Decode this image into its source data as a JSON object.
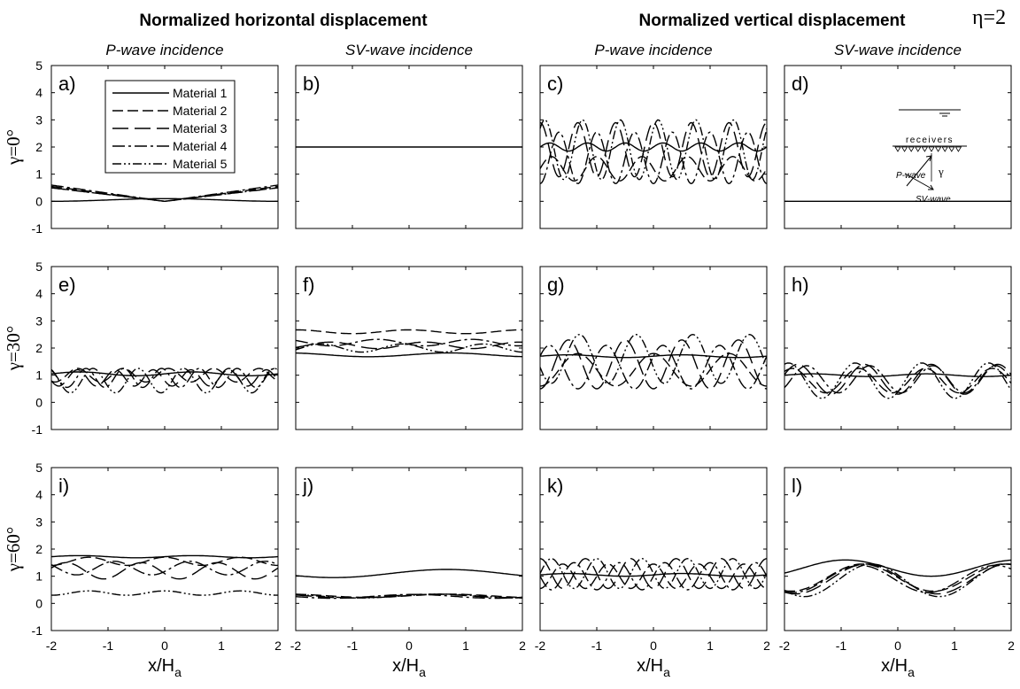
{
  "figure": {
    "header_horizontal": "Normalized horizontal displacement",
    "header_vertical": "Normalized vertical displacement",
    "eta_label": "η=2",
    "column_titles": [
      "P-wave incidence",
      "SV-wave incidence",
      "P-wave incidence",
      "SV-wave incidence"
    ],
    "row_labels": [
      "γ=0°",
      "γ=30°",
      "γ=60°"
    ],
    "xlabel_main": "x/H",
    "xlabel_sub": "a",
    "legend": [
      "Material 1",
      "Material 2",
      "Material 3",
      "Material 4",
      "Material 5"
    ],
    "inset": {
      "receivers": "receivers",
      "p_wave": "P-wave",
      "sv_wave": "SV-wave",
      "gamma": "γ"
    },
    "xlim": [
      -2,
      2
    ],
    "ylim": [
      -1,
      5
    ],
    "x_ticks": [
      "-2",
      "-1",
      "0",
      "1",
      "2"
    ],
    "y_ticks": [
      "-1",
      "0",
      "1",
      "2",
      "3",
      "4",
      "5"
    ],
    "line_color": "#000000"
  },
  "chart_data": [
    {
      "type": "line",
      "title": "a)",
      "series": [
        {
          "name": "Material 1",
          "kind": "sin",
          "base": 0.05,
          "amp": 0.05,
          "freq": 0.25,
          "phase": 90
        },
        {
          "name": "Material 2",
          "kind": "v",
          "base": 0.0,
          "amp": 0.55
        },
        {
          "name": "Material 3",
          "kind": "v",
          "base": 0.0,
          "amp": 0.5
        },
        {
          "name": "Material 4",
          "kind": "v",
          "base": 0.0,
          "amp": 0.6
        },
        {
          "name": "Material 5",
          "kind": "v",
          "base": 0.0,
          "amp": 0.5
        }
      ]
    },
    {
      "type": "line",
      "title": "b)",
      "series": [
        {
          "name": "Material 1",
          "kind": "sin",
          "base": 2.0,
          "amp": 0,
          "freq": 1,
          "phase": 0
        }
      ]
    },
    {
      "type": "line",
      "title": "c)",
      "series": [
        {
          "name": "Material 1",
          "kind": "sin",
          "base": 2.0,
          "amp": 0.15,
          "freq": 1.5,
          "phase": 0
        },
        {
          "name": "Material 2",
          "kind": "sin",
          "base": 1.2,
          "amp": 0.45,
          "freq": 1.25,
          "phase": 180
        },
        {
          "name": "Material 3",
          "kind": "sin",
          "base": 1.9,
          "amp": 1.0,
          "freq": 1.5,
          "phase": 90
        },
        {
          "name": "Material 4",
          "kind": "sin",
          "base": 1.6,
          "amp": 0.95,
          "freq": 1.5,
          "phase": 270
        },
        {
          "name": "Material 5",
          "kind": "sin",
          "base": 1.9,
          "amp": 1.1,
          "freq": 1.5,
          "phase": 45
        }
      ]
    },
    {
      "type": "line",
      "title": "d)",
      "series": [
        {
          "name": "Material 1",
          "kind": "sin",
          "base": 0.0,
          "amp": 0,
          "freq": 1,
          "phase": 0
        }
      ]
    },
    {
      "type": "line",
      "title": "e)",
      "series": [
        {
          "name": "Material 1",
          "kind": "sin",
          "base": 1.05,
          "amp": 0.07,
          "freq": 0.5,
          "phase": 0
        },
        {
          "name": "Material 2",
          "kind": "sin",
          "base": 1.0,
          "amp": 0.25,
          "freq": 1.25,
          "phase": 60
        },
        {
          "name": "Material 3",
          "kind": "sin",
          "base": 0.9,
          "amp": 0.3,
          "freq": 1.5,
          "phase": 200
        },
        {
          "name": "Material 4",
          "kind": "sin",
          "base": 0.9,
          "amp": 0.35,
          "freq": 1.5,
          "phase": 120
        },
        {
          "name": "Material 5",
          "kind": "sin",
          "base": 0.8,
          "amp": 0.45,
          "freq": 1.25,
          "phase": 300
        }
      ]
    },
    {
      "type": "line",
      "title": "f)",
      "series": [
        {
          "name": "Material 1",
          "kind": "sin",
          "base": 1.75,
          "amp": 0.07,
          "freq": 0.35,
          "phase": 0
        },
        {
          "name": "Material 2",
          "kind": "sin",
          "base": 2.6,
          "amp": 0.07,
          "freq": 0.5,
          "phase": 90
        },
        {
          "name": "Material 3",
          "kind": "sin",
          "base": 2.1,
          "amp": 0.12,
          "freq": 0.6,
          "phase": 30
        },
        {
          "name": "Material 4",
          "kind": "sin",
          "base": 2.2,
          "amp": 0.12,
          "freq": 0.6,
          "phase": 210
        },
        {
          "name": "Material 5",
          "kind": "sin",
          "base": 2.0,
          "amp": 0.15,
          "freq": 0.7,
          "phase": 120
        }
      ]
    },
    {
      "type": "line",
      "title": "g)",
      "series": [
        {
          "name": "Material 1",
          "kind": "sin",
          "base": 1.7,
          "amp": 0.05,
          "freq": 0.5,
          "phase": 0
        },
        {
          "name": "Material 2",
          "kind": "sin",
          "base": 1.2,
          "amp": 0.6,
          "freq": 0.75,
          "phase": 90
        },
        {
          "name": "Material 3",
          "kind": "sin",
          "base": 1.4,
          "amp": 0.9,
          "freq": 1.0,
          "phase": 270
        },
        {
          "name": "Material 4",
          "kind": "sin",
          "base": 1.3,
          "amp": 0.8,
          "freq": 1.0,
          "phase": 30
        },
        {
          "name": "Material 5",
          "kind": "sin",
          "base": 1.6,
          "amp": 0.9,
          "freq": 1.0,
          "phase": 200
        }
      ]
    },
    {
      "type": "line",
      "title": "h)",
      "series": [
        {
          "name": "Material 1",
          "kind": "sin",
          "base": 1.0,
          "amp": 0.05,
          "freq": 0.5,
          "phase": 0
        },
        {
          "name": "Material 2",
          "kind": "sin",
          "base": 0.8,
          "amp": 0.45,
          "freq": 0.85,
          "phase": 300
        },
        {
          "name": "Material 3",
          "kind": "sin",
          "base": 0.85,
          "amp": 0.55,
          "freq": 0.85,
          "phase": 270
        },
        {
          "name": "Material 4",
          "kind": "sin",
          "base": 0.85,
          "amp": 0.5,
          "freq": 0.9,
          "phase": 250
        },
        {
          "name": "Material 5",
          "kind": "sin",
          "base": 0.8,
          "amp": 0.65,
          "freq": 0.85,
          "phase": 320
        }
      ]
    },
    {
      "type": "line",
      "title": "i)",
      "series": [
        {
          "name": "Material 1",
          "kind": "sin",
          "base": 1.72,
          "amp": 0.04,
          "freq": 0.5,
          "phase": 0
        },
        {
          "name": "Material 2",
          "kind": "sin",
          "base": 1.55,
          "amp": 0.15,
          "freq": 0.75,
          "phase": 90
        },
        {
          "name": "Material 3",
          "kind": "sin",
          "base": 1.2,
          "amp": 0.3,
          "freq": 0.75,
          "phase": 200
        },
        {
          "name": "Material 4",
          "kind": "sin",
          "base": 1.3,
          "amp": 0.25,
          "freq": 0.75,
          "phase": 330
        },
        {
          "name": "Material 5",
          "kind": "sin",
          "base": 0.38,
          "amp": 0.08,
          "freq": 0.75,
          "phase": 90
        }
      ]
    },
    {
      "type": "line",
      "title": "j)",
      "series": [
        {
          "name": "Material 1",
          "kind": "sin",
          "base": 1.1,
          "amp": 0.15,
          "freq": 0.25,
          "phase": 30
        },
        {
          "name": "Material 2",
          "kind": "sin",
          "base": 0.28,
          "amp": 0.06,
          "freq": 0.35,
          "phase": 0
        },
        {
          "name": "Material 3",
          "kind": "sin",
          "base": 0.27,
          "amp": 0.07,
          "freq": 0.35,
          "phase": 40
        },
        {
          "name": "Material 4",
          "kind": "sin",
          "base": 0.26,
          "amp": 0.07,
          "freq": 0.35,
          "phase": 80
        },
        {
          "name": "Material 5",
          "kind": "sin",
          "base": 0.27,
          "amp": 0.07,
          "freq": 0.35,
          "phase": 20
        }
      ]
    },
    {
      "type": "line",
      "title": "k)",
      "series": [
        {
          "name": "Material 1",
          "kind": "sin",
          "base": 1.05,
          "amp": 0.05,
          "freq": 0.5,
          "phase": 0
        },
        {
          "name": "Material 2",
          "kind": "sin",
          "base": 1.0,
          "amp": 0.45,
          "freq": 1.25,
          "phase": 90
        },
        {
          "name": "Material 3",
          "kind": "sin",
          "base": 1.1,
          "amp": 0.55,
          "freq": 1.25,
          "phase": 270
        },
        {
          "name": "Material 4",
          "kind": "sin",
          "base": 1.0,
          "amp": 0.5,
          "freq": 1.25,
          "phase": 0
        },
        {
          "name": "Material 5",
          "kind": "sin",
          "base": 1.1,
          "amp": 0.55,
          "freq": 1.25,
          "phase": 180
        }
      ]
    },
    {
      "type": "line",
      "title": "l)",
      "series": [
        {
          "name": "Material 1",
          "kind": "sin",
          "base": 1.3,
          "amp": 0.3,
          "freq": 0.33,
          "phase": 200
        },
        {
          "name": "Material 2",
          "kind": "sin",
          "base": 0.95,
          "amp": 0.5,
          "freq": 0.4,
          "phase": 180
        },
        {
          "name": "Material 3",
          "kind": "sin",
          "base": 0.9,
          "amp": 0.55,
          "freq": 0.4,
          "phase": 170
        },
        {
          "name": "Material 4",
          "kind": "sin",
          "base": 0.9,
          "amp": 0.5,
          "freq": 0.42,
          "phase": 190
        },
        {
          "name": "Material 5",
          "kind": "sin",
          "base": 0.85,
          "amp": 0.6,
          "freq": 0.42,
          "phase": 160
        }
      ]
    }
  ]
}
